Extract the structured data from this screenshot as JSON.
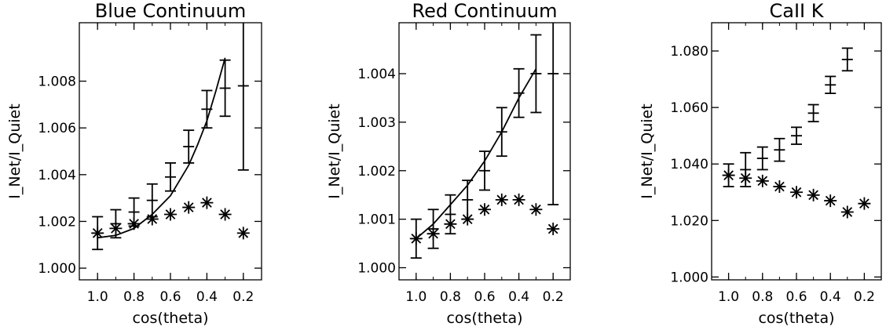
{
  "chart_data": [
    {
      "type": "scatter",
      "title": "Blue Continuum",
      "xlabel": "cos(theta)",
      "ylabel": "I_Net/I_Quiet",
      "xlim": [
        1.1,
        0.1
      ],
      "ylim": [
        0.9995,
        1.0105
      ],
      "xticks": [
        1.0,
        0.8,
        0.6,
        0.4,
        0.2
      ],
      "xtick_labels": [
        "1.0",
        "0.8",
        "0.6",
        "0.4",
        "0.2"
      ],
      "yticks": [
        1.0,
        1.002,
        1.004,
        1.006,
        1.008
      ],
      "ytick_labels": [
        "1.000",
        "1.002",
        "1.004",
        "1.006",
        "1.008"
      ],
      "grid": false,
      "errorbar_series": {
        "x": [
          1.0,
          0.9,
          0.8,
          0.7,
          0.6,
          0.5,
          0.4,
          0.3,
          0.2
        ],
        "y": [
          1.0015,
          1.0019,
          1.0024,
          1.0029,
          1.0039,
          1.0052,
          1.0068,
          1.0077,
          1.0078
        ],
        "err": [
          0.0007,
          0.0006,
          0.0006,
          0.0007,
          0.0006,
          0.0007,
          0.0008,
          0.0012,
          0.0036
        ]
      },
      "star_series": {
        "x": [
          1.0,
          0.9,
          0.8,
          0.7,
          0.6,
          0.5,
          0.4,
          0.3,
          0.2
        ],
        "y": [
          1.0015,
          1.0017,
          1.0019,
          1.0021,
          1.0023,
          1.0026,
          1.0028,
          1.0023,
          1.0015
        ]
      },
      "fit_line": {
        "x": [
          1.0,
          0.9,
          0.8,
          0.7,
          0.6,
          0.5,
          0.45,
          0.4,
          0.35,
          0.3
        ],
        "y": [
          1.0013,
          1.0014,
          1.0017,
          1.0023,
          1.0031,
          1.0044,
          1.0053,
          1.0063,
          1.0076,
          1.009
        ]
      }
    },
    {
      "type": "scatter",
      "title": "Red Continuum",
      "xlabel": "cos(theta)",
      "ylabel": "I_Net/I_Quiet",
      "xlim": [
        1.1,
        0.1
      ],
      "ylim": [
        0.99975,
        1.00505
      ],
      "xticks": [
        1.0,
        0.8,
        0.6,
        0.4,
        0.2
      ],
      "xtick_labels": [
        "1.0",
        "0.8",
        "0.6",
        "0.4",
        "0.2"
      ],
      "yticks": [
        1.0,
        1.001,
        1.002,
        1.003,
        1.004
      ],
      "ytick_labels": [
        "1.000",
        "1.001",
        "1.002",
        "1.003",
        "1.004"
      ],
      "grid": false,
      "errorbar_series": {
        "x": [
          1.0,
          0.9,
          0.8,
          0.7,
          0.6,
          0.5,
          0.4,
          0.3,
          0.2
        ],
        "y": [
          1.0006,
          1.0008,
          1.0011,
          1.0014,
          1.002,
          1.0028,
          1.0036,
          1.004,
          1.004
        ],
        "err": [
          0.0004,
          0.0004,
          0.0004,
          0.0004,
          0.0004,
          0.0005,
          0.0005,
          0.0008,
          0.0027
        ]
      },
      "star_series": {
        "x": [
          1.0,
          0.9,
          0.8,
          0.7,
          0.6,
          0.5,
          0.4,
          0.3,
          0.2
        ],
        "y": [
          1.0006,
          1.0007,
          1.0009,
          1.001,
          1.0012,
          1.0014,
          1.0014,
          1.0012,
          1.0008
        ]
      },
      "fit_line": {
        "x": [
          1.0,
          0.9,
          0.8,
          0.7,
          0.6,
          0.5,
          0.4,
          0.3
        ],
        "y": [
          1.0006,
          1.0009,
          1.0013,
          1.0017,
          1.0022,
          1.0028,
          1.0035,
          1.0041
        ]
      }
    },
    {
      "type": "scatter",
      "title": "CaII K",
      "xlabel": "cos(theta)",
      "ylabel": "I_Net/I_Quiet",
      "xlim": [
        1.1,
        0.1
      ],
      "ylim": [
        0.999,
        1.09
      ],
      "xticks": [
        1.0,
        0.8,
        0.6,
        0.4,
        0.2
      ],
      "xtick_labels": [
        "1.0",
        "0.8",
        "0.6",
        "0.4",
        "0.2"
      ],
      "yticks": [
        1.0,
        1.02,
        1.04,
        1.06,
        1.08
      ],
      "ytick_labels": [
        "1.000",
        "1.020",
        "1.040",
        "1.060",
        "1.080"
      ],
      "grid": false,
      "errorbar_series": {
        "x": [
          1.0,
          0.9,
          0.8,
          0.7,
          0.6,
          0.5,
          0.4,
          0.3
        ],
        "y": [
          1.036,
          1.038,
          1.042,
          1.045,
          1.05,
          1.058,
          1.068,
          1.077
        ],
        "err": [
          0.004,
          0.006,
          0.004,
          0.004,
          0.003,
          0.003,
          0.003,
          0.004
        ]
      },
      "star_series": {
        "x": [
          1.0,
          0.9,
          0.8,
          0.7,
          0.6,
          0.5,
          0.4,
          0.3,
          0.2
        ],
        "y": [
          1.036,
          1.035,
          1.034,
          1.032,
          1.03,
          1.029,
          1.027,
          1.023,
          1.026
        ]
      }
    }
  ]
}
